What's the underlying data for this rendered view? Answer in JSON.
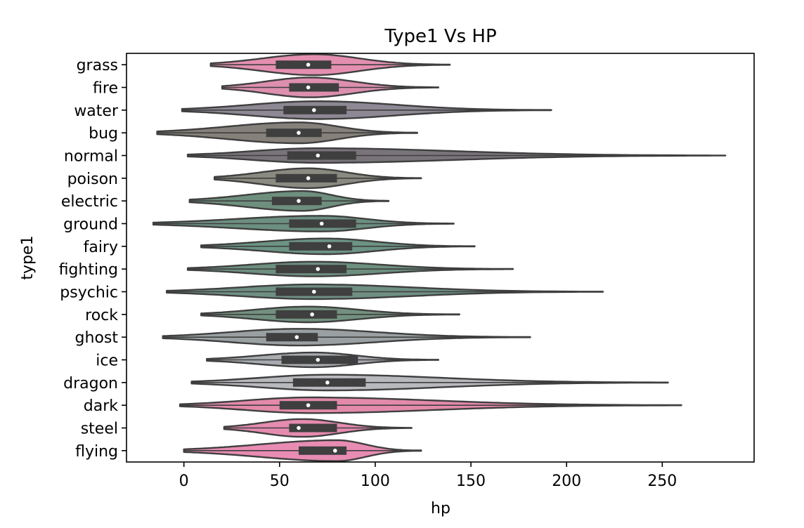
{
  "chart_data": {
    "type": "violin",
    "orientation": "horizontal",
    "title": "Type1 Vs HP",
    "xlabel": "hp",
    "ylabel": "type1",
    "xlim": [
      -30,
      298
    ],
    "xticks": [
      0,
      50,
      100,
      150,
      200,
      250
    ],
    "grid": false,
    "legend": "none",
    "categories": [
      "grass",
      "fire",
      "water",
      "bug",
      "normal",
      "poison",
      "electric",
      "ground",
      "fairy",
      "fighting",
      "psychic",
      "rock",
      "ghost",
      "ice",
      "dragon",
      "dark",
      "steel",
      "flying"
    ],
    "colors": [
      "#e48fb0",
      "#dd8fae",
      "#8d8894",
      "#85807a",
      "#78747a",
      "#8a8a80",
      "#6e8f7d",
      "#6b8f80",
      "#6c9384",
      "#6d8f80",
      "#6f8f83",
      "#73907f",
      "#9aa0a2",
      "#a8abb0",
      "#b8b9bd",
      "#e38aab",
      "#e68bb0",
      "#e88cb3"
    ],
    "violins": [
      {
        "min": 14,
        "q1": 48,
        "median": 65,
        "q3": 77,
        "max": 139,
        "peak": 68,
        "width": 1.0
      },
      {
        "min": 20,
        "q1": 55,
        "median": 65,
        "q3": 81,
        "max": 133,
        "peak": 66,
        "width": 0.95
      },
      {
        "min": -1,
        "q1": 52,
        "median": 68,
        "q3": 85,
        "max": 192,
        "peak": 70,
        "width": 0.85
      },
      {
        "min": -14,
        "q1": 43,
        "median": 60,
        "q3": 72,
        "max": 122,
        "peak": 60,
        "width": 1.0
      },
      {
        "min": 2,
        "q1": 54,
        "median": 70,
        "q3": 90,
        "max": 283,
        "peak": 70,
        "width": 0.7
      },
      {
        "min": 16,
        "q1": 48,
        "median": 65,
        "q3": 80,
        "max": 124,
        "peak": 65,
        "width": 0.95
      },
      {
        "min": 3,
        "q1": 46,
        "median": 60,
        "q3": 72,
        "max": 107,
        "peak": 62,
        "width": 0.95
      },
      {
        "min": -16,
        "q1": 55,
        "median": 72,
        "q3": 90,
        "max": 141,
        "peak": 72,
        "width": 0.75
      },
      {
        "min": 9,
        "q1": 55,
        "median": 76,
        "q3": 88,
        "max": 152,
        "peak": 74,
        "width": 0.75
      },
      {
        "min": 2,
        "q1": 48,
        "median": 70,
        "q3": 85,
        "max": 172,
        "peak": 68,
        "width": 0.7
      },
      {
        "min": -9,
        "q1": 48,
        "median": 68,
        "q3": 88,
        "max": 219,
        "peak": 68,
        "width": 0.7
      },
      {
        "min": 9,
        "q1": 48,
        "median": 67,
        "q3": 80,
        "max": 144,
        "peak": 65,
        "width": 0.75
      },
      {
        "min": -11,
        "q1": 43,
        "median": 59,
        "q3": 70,
        "max": 181,
        "peak": 60,
        "width": 0.8
      },
      {
        "min": 12,
        "q1": 51,
        "median": 70,
        "q3": 91,
        "max": 133,
        "peak": 68,
        "width": 0.7
      },
      {
        "min": 4,
        "q1": 57,
        "median": 75,
        "q3": 95,
        "max": 253,
        "peak": 75,
        "width": 0.75
      },
      {
        "min": -2,
        "q1": 50,
        "median": 65,
        "q3": 80,
        "max": 260,
        "peak": 66,
        "width": 0.75
      },
      {
        "min": 21,
        "q1": 55,
        "median": 60,
        "q3": 80,
        "max": 119,
        "peak": 62,
        "width": 0.85
      },
      {
        "min": 0,
        "q1": 60,
        "median": 79,
        "q3": 85,
        "max": 124,
        "peak": 80,
        "width": 1.0
      }
    ]
  }
}
